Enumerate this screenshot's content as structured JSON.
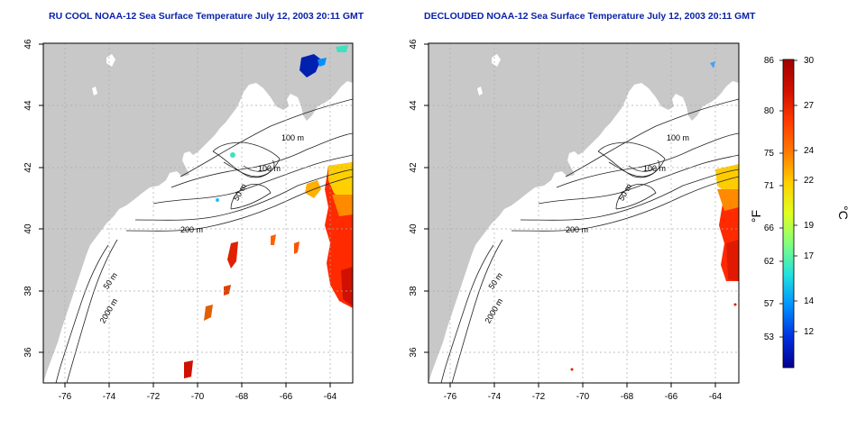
{
  "titles": {
    "left": "RU COOL NOAA-12 Sea Surface Temperature July 12, 2003 20:11 GMT",
    "right": "DECLOUDED NOAA-12 Sea Surface Temperature July 12, 2003 20:11 GMT"
  },
  "axes": {
    "lon_ticks": [
      "-76",
      "-74",
      "-72",
      "-70",
      "-68",
      "-66",
      "-64"
    ],
    "lat_ticks": [
      "36",
      "38",
      "40",
      "42",
      "44",
      "46"
    ],
    "lon_range": [
      -77,
      -63
    ],
    "lat_range": [
      35,
      46
    ]
  },
  "contour_labels": [
    {
      "text": "100 m",
      "lon": -66.4,
      "lat": 42.9
    },
    {
      "text": "100 m",
      "lon": -67.2,
      "lat": 41.9
    },
    {
      "text": "50 m",
      "lon": -67.7,
      "lat": 40.9
    },
    {
      "text": "200 m",
      "lon": -70.8,
      "lat": 39.9
    },
    {
      "text": "50 m",
      "lon": -74.0,
      "lat": 37.6
    },
    {
      "text": "2000 m",
      "lon": -73.7,
      "lat": 36.8
    }
  ],
  "colorbar": {
    "fahrenheit_ticks": [
      "86",
      "80",
      "75",
      "71",
      "66",
      "62",
      "57",
      "53"
    ],
    "celsius_ticks": [
      "30",
      "27",
      "24",
      "22",
      "19",
      "17",
      "14",
      "12"
    ],
    "f_label": "°F",
    "c_label": "°C",
    "range_c": [
      9.5,
      30
    ],
    "stops": [
      "#a00000",
      "#d01000",
      "#ff3a00",
      "#ff7a00",
      "#ffd000",
      "#e0ff20",
      "#80ff80",
      "#20e0e0",
      "#0090ff",
      "#0030e0",
      "#000090"
    ]
  },
  "colors": {
    "land": "#c8c8c8",
    "title": "#0a22a8",
    "contour": "#222222",
    "grid": "#aaaaaa"
  }
}
